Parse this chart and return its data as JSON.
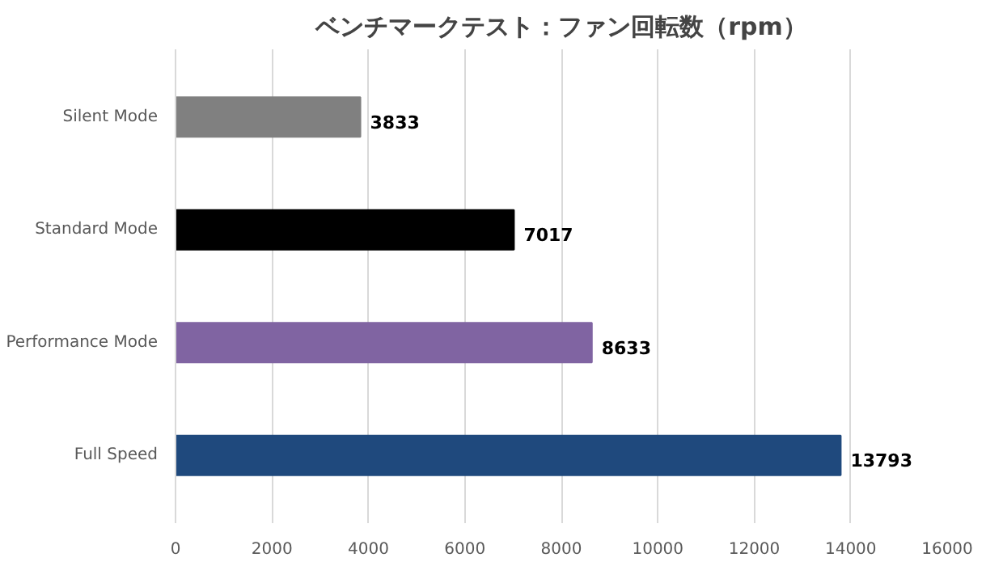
{
  "chart_data": {
    "type": "bar",
    "orientation": "horizontal",
    "title": "ベンチマークテスト：ファン回転数（rpm）",
    "categories": [
      "Silent Mode",
      "Standard Mode",
      "Performance Mode",
      "Full Speed"
    ],
    "values": [
      3833,
      7017,
      8633,
      13793
    ],
    "colors": [
      "#808080",
      "#000000",
      "#8064a2",
      "#1f497d"
    ],
    "xlim": [
      0,
      16000
    ],
    "xticks": [
      0,
      2000,
      4000,
      6000,
      8000,
      10000,
      12000,
      14000,
      16000
    ],
    "grid": "x",
    "data_labels": true
  }
}
